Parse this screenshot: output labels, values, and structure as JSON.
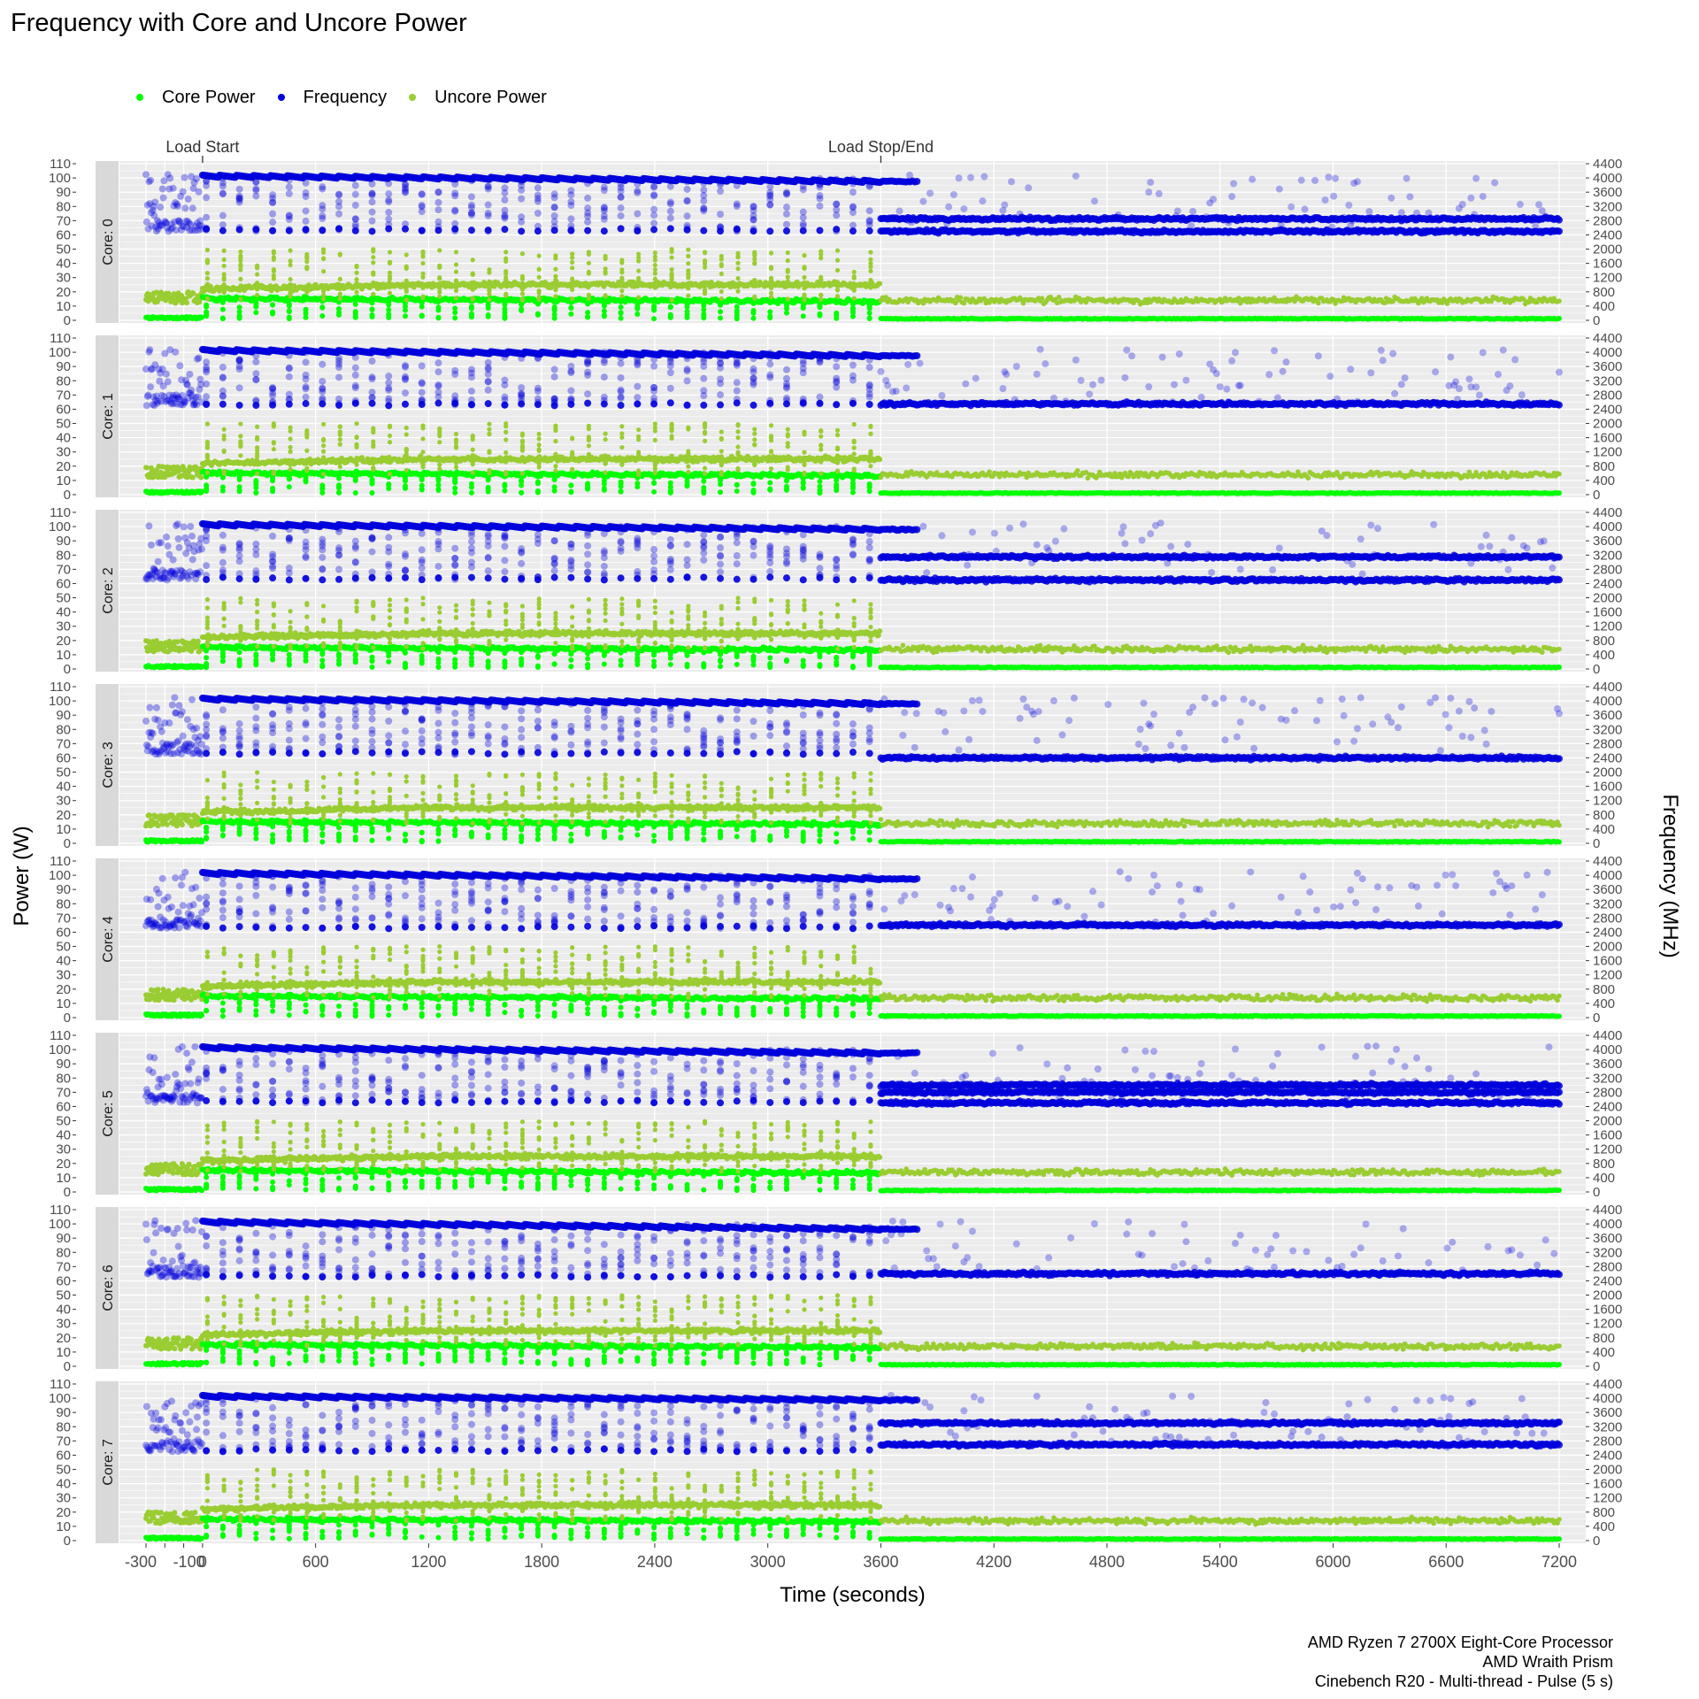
{
  "title": "Frequency with Core and Uncore Power",
  "legend": {
    "core_power": "Core Power",
    "frequency": "Frequency",
    "uncore_power": "Uncore Power"
  },
  "colors": {
    "core_power": "#00ff00",
    "frequency": "#0000dd",
    "uncore_power": "#9acd32",
    "panel_bg": "#ebebeb",
    "strip_bg": "#d9d9d9"
  },
  "caption": [
    "AMD Ryzen 7 2700X Eight-Core Processor",
    "AMD Wraith Prism",
    "Cinebench R20 - Multi-thread - Pulse (5 s)"
  ],
  "chart_data": {
    "type": "scatter",
    "title": "Frequency with Core and Uncore Power",
    "xlabel": "Time (seconds)",
    "ylabel": "Power (W)",
    "y2label": "Frequency (MHz)",
    "xlim": [
      -300,
      7200
    ],
    "ylim": [
      0,
      110
    ],
    "y2lim": [
      0,
      4400
    ],
    "x_ticks": [
      -300,
      -200,
      -100,
      0,
      600,
      1200,
      1800,
      2400,
      3000,
      3600,
      4200,
      4800,
      5400,
      6000,
      6600,
      7200
    ],
    "x_tick_labels": [
      "-300",
      "-200",
      "-100",
      "0",
      "600",
      "1200",
      "1800",
      "2400",
      "3000",
      "3600",
      "4200",
      "4800",
      "5400",
      "6000",
      "6600",
      "7200"
    ],
    "y_ticks": [
      0,
      10,
      20,
      30,
      40,
      50,
      60,
      70,
      80,
      90,
      100,
      110
    ],
    "y2_ticks": [
      0,
      400,
      800,
      1200,
      1600,
      2000,
      2400,
      2800,
      3200,
      3600,
      4000,
      4400
    ],
    "grid": true,
    "legend_position": "top-left",
    "annotations": [
      {
        "x": 0,
        "label": "Load Start"
      },
      {
        "x": 3600,
        "label": "Load Stop/End"
      }
    ],
    "facets": [
      {
        "label": "Core: 0",
        "load_freq_start": 4050,
        "load_freq_end": 3900,
        "idle_freq": [
          2500,
          2850
        ]
      },
      {
        "label": "Core: 1",
        "load_freq_start": 4050,
        "load_freq_end": 3900,
        "idle_freq": [
          2550
        ]
      },
      {
        "label": "Core: 2",
        "load_freq_start": 4050,
        "load_freq_end": 3920,
        "idle_freq": [
          2500,
          3150
        ]
      },
      {
        "label": "Core: 3",
        "load_freq_start": 4050,
        "load_freq_end": 3920,
        "idle_freq": [
          2400
        ]
      },
      {
        "label": "Core: 4",
        "load_freq_start": 4050,
        "load_freq_end": 3900,
        "idle_freq": [
          2600
        ]
      },
      {
        "label": "Core: 5",
        "load_freq_start": 4050,
        "load_freq_end": 3900,
        "idle_freq": [
          2500,
          2800,
          3000
        ]
      },
      {
        "label": "Core: 6",
        "load_freq_start": 4050,
        "load_freq_end": 3850,
        "idle_freq": [
          2600
        ]
      },
      {
        "label": "Core: 7",
        "load_freq_start": 4050,
        "load_freq_end": 3950,
        "idle_freq": [
          2700,
          3300
        ]
      }
    ],
    "series": [
      {
        "name": "Core Power",
        "load_value_start": 16,
        "load_value_end": 14,
        "idle_value": 1
      },
      {
        "name": "Frequency",
        "scale": "y2"
      },
      {
        "name": "Uncore Power",
        "load_value_start": 22,
        "load_value_end": 25,
        "idle_value": 14
      }
    ]
  }
}
